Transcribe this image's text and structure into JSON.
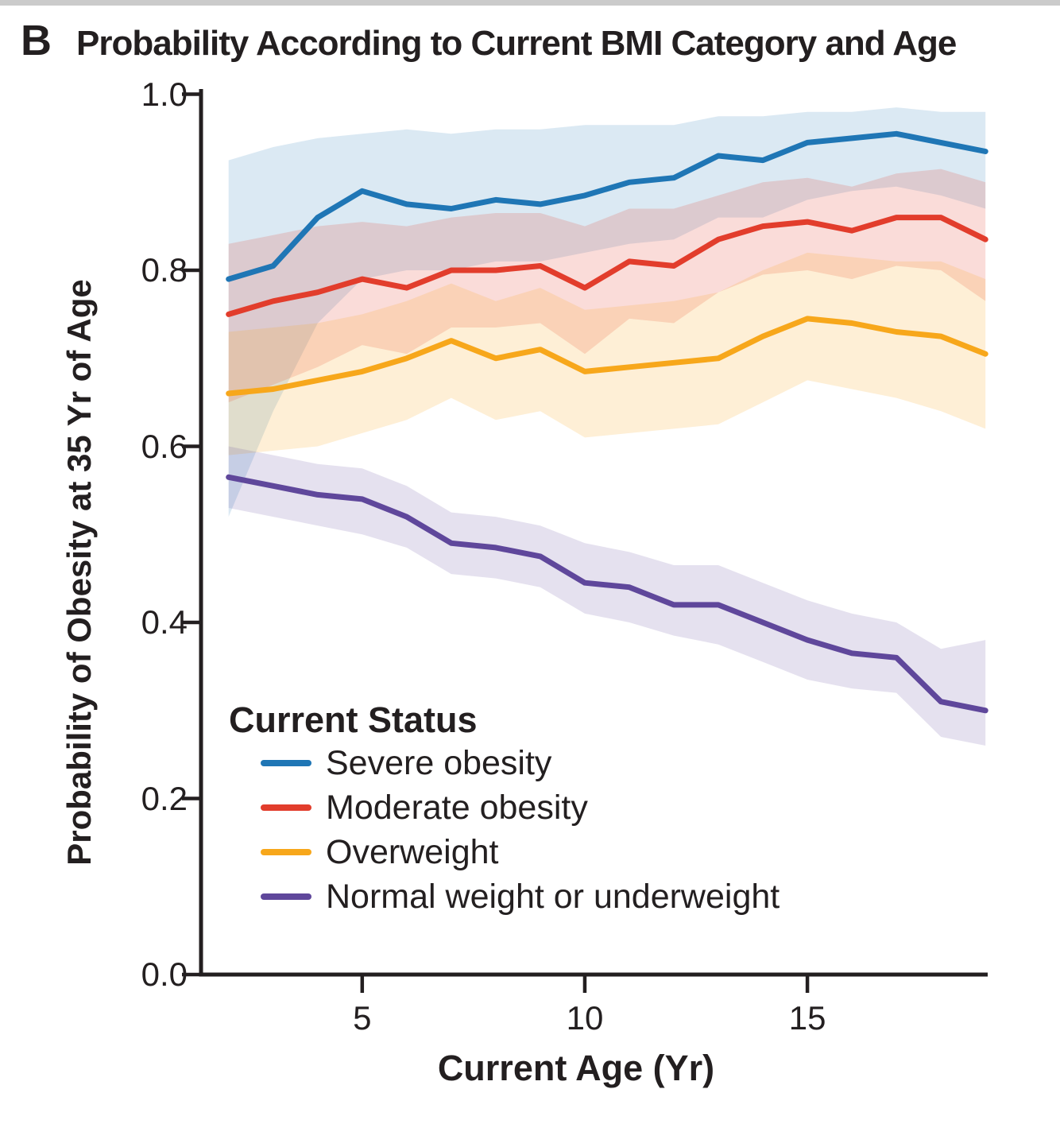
{
  "panel": {
    "label": "B",
    "title": "Probability According to Current BMI Category and Age"
  },
  "colors": {
    "text": "#231f20",
    "axis": "#231f20",
    "top_strip": "#cbcbcb",
    "severe_obesity": "#1f76b5",
    "moderate_obesity": "#e23d2c",
    "overweight": "#f7a71b",
    "normal_or_underweight": "#5f479b"
  },
  "chart_data": {
    "type": "line",
    "title": "Probability According to Current BMI Category and Age",
    "xlabel": "Current Age (Yr)",
    "ylabel": "Probability of Obesity at 35 Yr of Age",
    "legend_title": "Current Status",
    "legend_position": "inside-lower-left",
    "grid": false,
    "xlim": [
      1.38,
      19.05
    ],
    "ylim": [
      0.0,
      1.0
    ],
    "x_ticks": [
      5,
      10,
      15
    ],
    "x_tick_labels": [
      "5",
      "10",
      "15"
    ],
    "y_ticks": [
      0.0,
      0.2,
      0.4,
      0.6,
      0.8,
      1.0
    ],
    "y_tick_labels": [
      "0.0",
      "0.2",
      "0.4",
      "0.6",
      "0.8",
      "1.0"
    ],
    "x": [
      2,
      3,
      4,
      5,
      6,
      7,
      8,
      9,
      10,
      11,
      12,
      13,
      14,
      15,
      16,
      17,
      18,
      19
    ],
    "series": [
      {
        "name": "Severe obesity",
        "color": "#1f76b5",
        "band_opacity": 0.16,
        "values": [
          0.79,
          0.805,
          0.86,
          0.89,
          0.875,
          0.87,
          0.88,
          0.875,
          0.885,
          0.9,
          0.905,
          0.93,
          0.925,
          0.945,
          0.95,
          0.955,
          0.945,
          0.935
        ],
        "upper": [
          0.925,
          0.94,
          0.95,
          0.955,
          0.96,
          0.955,
          0.96,
          0.96,
          0.965,
          0.965,
          0.965,
          0.975,
          0.975,
          0.98,
          0.98,
          0.985,
          0.98,
          0.98
        ],
        "lower": [
          0.52,
          0.64,
          0.74,
          0.79,
          0.8,
          0.8,
          0.81,
          0.81,
          0.82,
          0.83,
          0.835,
          0.86,
          0.86,
          0.88,
          0.89,
          0.895,
          0.885,
          0.87
        ]
      },
      {
        "name": "Moderate obesity",
        "color": "#e23d2c",
        "band_opacity": 0.18,
        "values": [
          0.75,
          0.765,
          0.775,
          0.79,
          0.78,
          0.8,
          0.8,
          0.805,
          0.78,
          0.81,
          0.805,
          0.835,
          0.85,
          0.855,
          0.845,
          0.86,
          0.86,
          0.835
        ],
        "upper": [
          0.83,
          0.84,
          0.85,
          0.855,
          0.85,
          0.86,
          0.865,
          0.865,
          0.85,
          0.87,
          0.87,
          0.885,
          0.9,
          0.905,
          0.895,
          0.91,
          0.915,
          0.9
        ],
        "lower": [
          0.65,
          0.67,
          0.69,
          0.715,
          0.705,
          0.735,
          0.735,
          0.74,
          0.705,
          0.745,
          0.74,
          0.775,
          0.795,
          0.8,
          0.79,
          0.805,
          0.8,
          0.765
        ]
      },
      {
        "name": "Overweight",
        "color": "#f7a71b",
        "band_opacity": 0.18,
        "values": [
          0.66,
          0.665,
          0.675,
          0.685,
          0.7,
          0.72,
          0.7,
          0.71,
          0.685,
          0.69,
          0.695,
          0.7,
          0.725,
          0.745,
          0.74,
          0.73,
          0.725,
          0.705
        ],
        "upper": [
          0.73,
          0.735,
          0.74,
          0.75,
          0.765,
          0.785,
          0.765,
          0.78,
          0.755,
          0.76,
          0.765,
          0.775,
          0.8,
          0.82,
          0.815,
          0.81,
          0.81,
          0.79
        ],
        "lower": [
          0.59,
          0.595,
          0.6,
          0.615,
          0.63,
          0.655,
          0.63,
          0.64,
          0.61,
          0.615,
          0.62,
          0.625,
          0.65,
          0.675,
          0.665,
          0.655,
          0.64,
          0.62
        ]
      },
      {
        "name": "Normal weight or underweight",
        "color": "#5f479b",
        "band_opacity": 0.16,
        "values": [
          0.565,
          0.555,
          0.545,
          0.54,
          0.52,
          0.49,
          0.485,
          0.475,
          0.445,
          0.44,
          0.42,
          0.42,
          0.4,
          0.38,
          0.365,
          0.36,
          0.31,
          0.3
        ],
        "upper": [
          0.6,
          0.59,
          0.58,
          0.575,
          0.555,
          0.525,
          0.52,
          0.51,
          0.49,
          0.48,
          0.465,
          0.465,
          0.445,
          0.425,
          0.41,
          0.4,
          0.37,
          0.38
        ],
        "lower": [
          0.53,
          0.52,
          0.51,
          0.5,
          0.485,
          0.455,
          0.45,
          0.44,
          0.41,
          0.4,
          0.385,
          0.375,
          0.355,
          0.335,
          0.325,
          0.32,
          0.27,
          0.26
        ]
      }
    ]
  }
}
